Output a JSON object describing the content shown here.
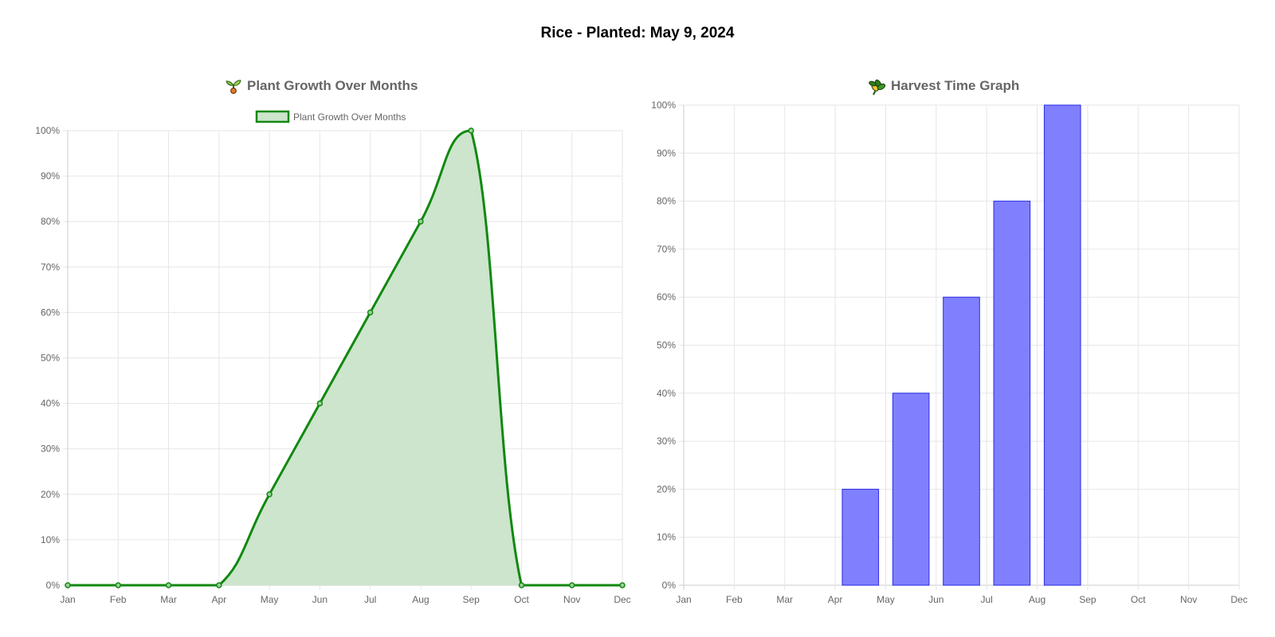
{
  "page": {
    "title": "Rice - Planted: May 9, 2024"
  },
  "chart_data": [
    {
      "type": "area",
      "title": "Plant Growth Over Months",
      "title_icon": "seedling-icon",
      "legend": {
        "position": "top",
        "entries": [
          "Plant Growth Over Months"
        ]
      },
      "categories": [
        "Jan",
        "Feb",
        "Mar",
        "Apr",
        "May",
        "Jun",
        "Jul",
        "Aug",
        "Sep",
        "Oct",
        "Nov",
        "Dec"
      ],
      "series": [
        {
          "name": "Plant Growth Over Months",
          "values": [
            0,
            0,
            0,
            0,
            20,
            40,
            60,
            80,
            100,
            0,
            0,
            0
          ]
        }
      ],
      "ylim": [
        0,
        100
      ],
      "yticks": [
        "0%",
        "10%",
        "20%",
        "30%",
        "40%",
        "50%",
        "60%",
        "70%",
        "80%",
        "90%",
        "100%"
      ],
      "grid": true,
      "colors": {
        "line": "#118811",
        "fill": "#cce5cc"
      }
    },
    {
      "type": "bar",
      "title": "Harvest Time Graph",
      "title_icon": "wheat-icon",
      "categories": [
        "Jan",
        "Feb",
        "Mar",
        "Apr",
        "May",
        "Jun",
        "Jul",
        "Aug",
        "Sep",
        "Oct",
        "Nov",
        "Dec"
      ],
      "values": [
        0,
        0,
        0,
        0,
        20,
        40,
        60,
        80,
        100,
        0,
        0,
        0
      ],
      "ylim": [
        0,
        100
      ],
      "yticks": [
        "0%",
        "10%",
        "20%",
        "30%",
        "40%",
        "50%",
        "60%",
        "70%",
        "80%",
        "90%",
        "100%"
      ],
      "grid": true,
      "colors": {
        "bar_fill": "#8080ff",
        "bar_border": "#2a2ae6"
      }
    }
  ]
}
